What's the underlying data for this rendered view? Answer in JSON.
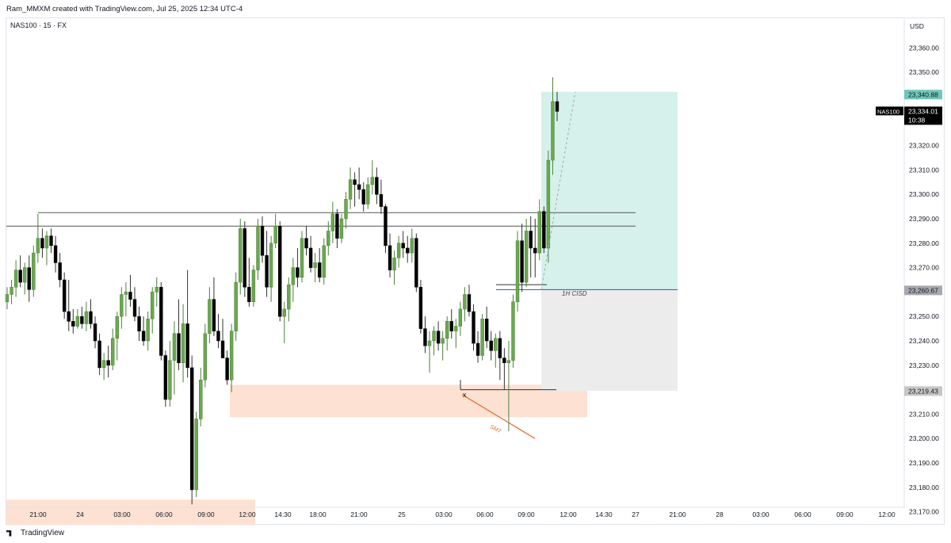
{
  "header": {
    "caption": "Ram_MMXM created with TradingView.com, Jul 25, 2025 12:34 UTC-4",
    "symbol": "NAS100 · 15 · FX"
  },
  "footer": {
    "brand": "TradingView"
  },
  "colors": {
    "bull": "#6aa84f",
    "bear": "#000000",
    "demand_zone": "#fde1d3",
    "target_zone": "#d6f1ec",
    "risk_zone": "#ececec",
    "cisd_line": "#2f55a4",
    "smt_line": "#e06a2b"
  },
  "chart_data": {
    "type": "candlestick",
    "title": "NAS100 · 15 · FX",
    "ylabel": "USD",
    "ylim": [
      23165,
      23365
    ],
    "y_ticks": [
      "23,360.00",
      "23,350.00",
      "23,340.00",
      "23,330.00",
      "23,320.00",
      "23,310.00",
      "23,300.00",
      "23,290.00",
      "23,280.00",
      "23,270.00",
      "23,260.00",
      "23,250.00",
      "23,240.00",
      "23,230.00",
      "23,220.00",
      "23,210.00",
      "23,200.00",
      "23,190.00",
      "23,180.00",
      "23,170.00"
    ],
    "x_ticks": [
      "21:00",
      "24",
      "03:00",
      "06:00",
      "09:00",
      "12:00",
      "14:30",
      "18:00",
      "21:00",
      "25",
      "03:00",
      "06:00",
      "09:00",
      "12:00",
      "14:30",
      "27",
      "21:00",
      "28",
      "03:00",
      "06:00",
      "09:00",
      "12:00"
    ],
    "price_badges": [
      {
        "text": "23,340.88",
        "value": 23340.88,
        "color": "#6fc7b8",
        "text_color": "#131722"
      },
      {
        "text": "23,260.67",
        "value": 23260.67,
        "color": "#a7a9ae",
        "text_color": "#131722"
      },
      {
        "text": "23,219.43",
        "value": 23219.43,
        "color": "#c6c6c6",
        "text_color": "#131722"
      }
    ],
    "last_price": {
      "symbol": "NAS100",
      "price": "23,334.01",
      "countdown": "10:38",
      "value": 23334.01
    },
    "horizontal_levels": [
      23292.5,
      23287
    ],
    "annotations": [
      "1H CISD",
      "SMT",
      "x"
    ],
    "candles": [
      [
        23256,
        23262,
        23253,
        23259
      ],
      [
        23259,
        23265,
        23255,
        23262
      ],
      [
        23262,
        23273,
        23258,
        23269
      ],
      [
        23269,
        23275,
        23262,
        23264
      ],
      [
        23264,
        23272,
        23259,
        23270
      ],
      [
        23270,
        23275,
        23256,
        23261
      ],
      [
        23261,
        23279,
        23258,
        23276
      ],
      [
        23276,
        23292,
        23272,
        23282
      ],
      [
        23282,
        23286,
        23274,
        23278
      ],
      [
        23278,
        23285,
        23271,
        23283
      ],
      [
        23283,
        23286,
        23276,
        23279
      ],
      [
        23279,
        23283,
        23268,
        23272
      ],
      [
        23272,
        23276,
        23262,
        23265
      ],
      [
        23265,
        23268,
        23249,
        23252
      ],
      [
        23252,
        23265,
        23244,
        23248
      ],
      [
        23248,
        23253,
        23243,
        23246
      ],
      [
        23246,
        23253,
        23245,
        23250
      ],
      [
        23250,
        23254,
        23245,
        23247
      ],
      [
        23247,
        23256,
        23244,
        23252
      ],
      [
        23252,
        23257,
        23245,
        23247
      ],
      [
        23247,
        23250,
        23237,
        23240
      ],
      [
        23240,
        23243,
        23226,
        23229
      ],
      [
        23229,
        23235,
        23224,
        23232
      ],
      [
        23232,
        23238,
        23225,
        23230
      ],
      [
        23230,
        23245,
        23228,
        23241
      ],
      [
        23241,
        23252,
        23232,
        23250
      ],
      [
        23250,
        23262,
        23245,
        23259
      ],
      [
        23259,
        23264,
        23250,
        23260
      ],
      [
        23260,
        23267,
        23254,
        23257
      ],
      [
        23257,
        23262,
        23248,
        23250
      ],
      [
        23250,
        23254,
        23240,
        23244
      ],
      [
        23244,
        23250,
        23238,
        23240
      ],
      [
        23240,
        23252,
        23236,
        23249
      ],
      [
        23249,
        23262,
        23243,
        23260
      ],
      [
        23260,
        23266,
        23254,
        23262
      ],
      [
        23262,
        23264,
        23232,
        23234
      ],
      [
        23234,
        23236,
        23213,
        23216
      ],
      [
        23216,
        23240,
        23213,
        23232
      ],
      [
        23232,
        23248,
        23218,
        23243
      ],
      [
        23243,
        23257,
        23228,
        23231
      ],
      [
        23231,
        23255,
        23223,
        23247
      ],
      [
        23247,
        23269,
        23225,
        23229
      ],
      [
        23229,
        23234,
        23173,
        23179
      ],
      [
        23179,
        23211,
        23176,
        23208
      ],
      [
        23208,
        23229,
        23205,
        23224
      ],
      [
        23224,
        23247,
        23221,
        23243
      ],
      [
        23243,
        23262,
        23239,
        23257
      ],
      [
        23257,
        23266,
        23242,
        23244
      ],
      [
        23244,
        23251,
        23237,
        23240
      ],
      [
        23240,
        23249,
        23233,
        23233
      ],
      [
        23233,
        23236,
        23222,
        23224
      ],
      [
        23224,
        23247,
        23219,
        23244
      ],
      [
        23244,
        23268,
        23240,
        23264
      ],
      [
        23264,
        23290,
        23259,
        23286
      ],
      [
        23286,
        23289,
        23258,
        23262
      ],
      [
        23262,
        23274,
        23254,
        23256
      ],
      [
        23256,
        23271,
        23254,
        23269
      ],
      [
        23269,
        23290,
        23265,
        23287
      ],
      [
        23287,
        23291,
        23272,
        23275
      ],
      [
        23275,
        23285,
        23258,
        23262
      ],
      [
        23262,
        23283,
        23256,
        23280
      ],
      [
        23280,
        23292,
        23278,
        23287
      ],
      [
        23287,
        23289,
        23248,
        23250
      ],
      [
        23250,
        23256,
        23239,
        23253
      ],
      [
        23253,
        23266,
        23248,
        23263
      ],
      [
        23263,
        23274,
        23256,
        23270
      ],
      [
        23270,
        23278,
        23262,
        23266
      ],
      [
        23266,
        23285,
        23264,
        23282
      ],
      [
        23282,
        23287,
        23275,
        23278
      ],
      [
        23278,
        23283,
        23268,
        23270
      ],
      [
        23270,
        23276,
        23264,
        23272
      ],
      [
        23272,
        23278,
        23264,
        23266
      ],
      [
        23266,
        23282,
        23263,
        23279
      ],
      [
        23279,
        23289,
        23275,
        23285
      ],
      [
        23285,
        23297,
        23280,
        23292
      ],
      [
        23292,
        23294,
        23278,
        23282
      ],
      [
        23282,
        23292,
        23280,
        23290
      ],
      [
        23290,
        23301,
        23286,
        23298
      ],
      [
        23298,
        23311,
        23294,
        23306
      ],
      [
        23306,
        23309,
        23295,
        23304
      ],
      [
        23304,
        23311,
        23298,
        23302
      ],
      [
        23302,
        23305,
        23293,
        23296
      ],
      [
        23296,
        23307,
        23294,
        23304
      ],
      [
        23304,
        23314,
        23300,
        23307
      ],
      [
        23307,
        23311,
        23296,
        23300
      ],
      [
        23300,
        23306,
        23292,
        23295
      ],
      [
        23295,
        23296,
        23276,
        23279
      ],
      [
        23279,
        23284,
        23266,
        23269
      ],
      [
        23269,
        23277,
        23263,
        23274
      ],
      [
        23274,
        23283,
        23270,
        23280
      ],
      [
        23280,
        23285,
        23274,
        23278
      ],
      [
        23278,
        23283,
        23272,
        23276
      ],
      [
        23276,
        23286,
        23272,
        23282
      ],
      [
        23282,
        23284,
        23260,
        23262
      ],
      [
        23262,
        23265,
        23243,
        23245
      ],
      [
        23245,
        23250,
        23235,
        23238
      ],
      [
        23238,
        23244,
        23227,
        23240
      ],
      [
        23240,
        23246,
        23234,
        23244
      ],
      [
        23244,
        23248,
        23236,
        23239
      ],
      [
        23239,
        23244,
        23232,
        23241
      ],
      [
        23241,
        23250,
        23236,
        23248
      ],
      [
        23248,
        23253,
        23241,
        23244
      ],
      [
        23244,
        23249,
        23237,
        23246
      ],
      [
        23246,
        23256,
        23242,
        23253
      ],
      [
        23253,
        23262,
        23248,
        23259
      ],
      [
        23259,
        23263,
        23250,
        23252
      ],
      [
        23252,
        23255,
        23236,
        23239
      ],
      [
        23239,
        23244,
        23231,
        23234
      ],
      [
        23234,
        23251,
        23232,
        23249
      ],
      [
        23249,
        23254,
        23237,
        23240
      ],
      [
        23240,
        23244,
        23232,
        23236
      ],
      [
        23236,
        23243,
        23229,
        23241
      ],
      [
        23241,
        23244,
        23224,
        23233
      ],
      [
        23233,
        23237,
        23220,
        23231
      ],
      [
        23231,
        23240,
        23203,
        23232
      ],
      [
        23232,
        23259,
        23229,
        23256
      ],
      [
        23256,
        23285,
        23252,
        23281
      ],
      [
        23281,
        23288,
        23260,
        23264
      ],
      [
        23264,
        23290,
        23262,
        23285
      ],
      [
        23285,
        23291,
        23266,
        23278
      ],
      [
        23278,
        23290,
        23266,
        23276
      ],
      [
        23276,
        23298,
        23273,
        23293
      ],
      [
        23293,
        23295,
        23276,
        23278
      ],
      [
        23278,
        23318,
        23272,
        23314
      ],
      [
        23314,
        23348,
        23308,
        23338
      ],
      [
        23338,
        23342,
        23330,
        23334
      ]
    ],
    "x_range": [
      -0.5,
      142.5
    ]
  }
}
